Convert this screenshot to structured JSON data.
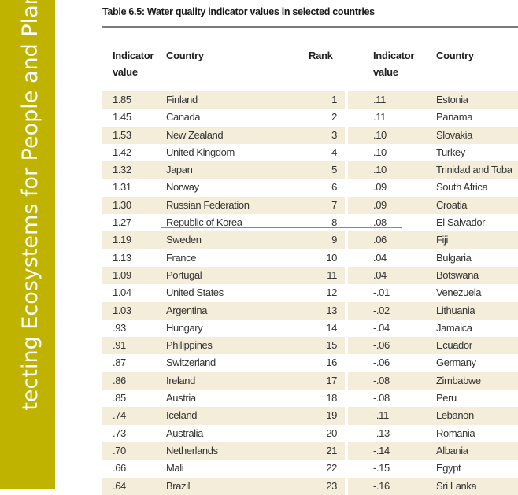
{
  "sidebar": {
    "text": "tecting Ecosystems for People and Planet",
    "color": "#c0b300"
  },
  "table": {
    "title": "Table 6.5: Water quality indicator values in selected countries",
    "headers": {
      "value_left": "Indicator value",
      "country_left": "Country",
      "rank": "Rank",
      "value_right": "Indicator value",
      "country_right": "Country"
    },
    "stripe_color": "#f3edda",
    "highlight_row_rank": 8,
    "rows": [
      [
        "1.85",
        "Finland",
        "1",
        ".11",
        "Estonia"
      ],
      [
        "1.45",
        "Canada",
        "2",
        ".11",
        "Panama"
      ],
      [
        "1.53",
        "New Zealand",
        "3",
        ".10",
        "Slovakia"
      ],
      [
        "1.42",
        "United Kingdom",
        "4",
        ".10",
        "Turkey"
      ],
      [
        "1.32",
        "Japan",
        "5",
        ".10",
        "Trinidad and Toba"
      ],
      [
        "1.31",
        "Norway",
        "6",
        ".09",
        "South Africa"
      ],
      [
        "1.30",
        "Russian Federation",
        "7",
        ".09",
        "Croatia"
      ],
      [
        "1.27",
        "Republic of Korea",
        "8",
        ".08",
        "El Salvador"
      ],
      [
        "1.19",
        "Sweden",
        "9",
        ".06",
        "Fiji"
      ],
      [
        "1.13",
        "France",
        "10",
        ".04",
        "Bulgaria"
      ],
      [
        "1.09",
        "Portugal",
        "11",
        ".04",
        "Botswana"
      ],
      [
        "1.04",
        "United States",
        "12",
        "-.01",
        "Venezuela"
      ],
      [
        "1.03",
        "Argentina",
        "13",
        "-.02",
        "Lithuania"
      ],
      [
        ".93",
        "Hungary",
        "14",
        "-.04",
        "Jamaica"
      ],
      [
        ".91",
        "Philippines",
        "15",
        "-.06",
        "Ecuador"
      ],
      [
        ".87",
        "Switzerland",
        "16",
        "-.06",
        "Germany"
      ],
      [
        ".86",
        "Ireland",
        "17",
        "-.08",
        "Zimbabwe"
      ],
      [
        ".85",
        "Austria",
        "18",
        "-.08",
        "Peru"
      ],
      [
        ".74",
        "Iceland",
        "19",
        "-.11",
        "Lebanon"
      ],
      [
        ".73",
        "Australia",
        "20",
        "-.13",
        "Romania"
      ],
      [
        ".70",
        "Netherlands",
        "21",
        "-.14",
        "Albania"
      ],
      [
        ".66",
        "Mali",
        "22",
        "-.15",
        "Egypt"
      ],
      [
        ".64",
        "Brazil",
        "23",
        "-.16",
        "Sri Lanka"
      ]
    ]
  }
}
